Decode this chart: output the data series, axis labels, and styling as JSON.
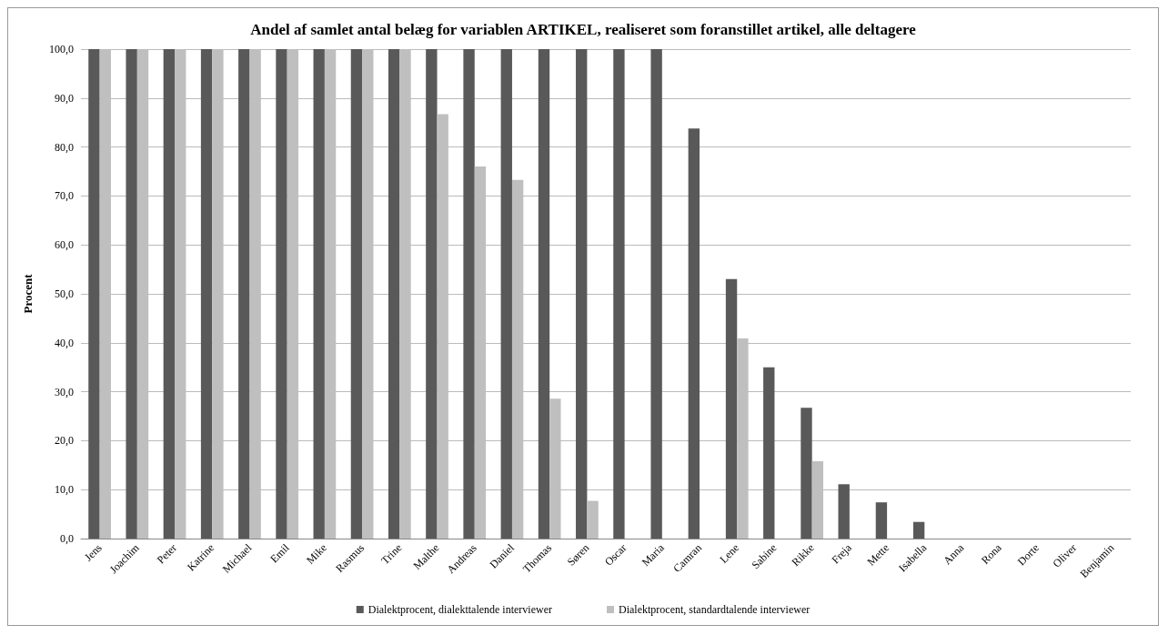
{
  "chart_data": {
    "type": "bar",
    "title": "Andel af samlet antal belæg for variablen ARTIKEL, realiseret som foranstillet artikel, alle deltagere",
    "ylabel": "Procent",
    "categories": [
      "Jens",
      "Joachim",
      "Peter",
      "Katrine",
      "Michael",
      "Emil",
      "Mike",
      "Rasmus",
      "Trine",
      "Malthe",
      "Andreas",
      "Daniel",
      "Thomas",
      "Søren",
      "Oscar",
      "Maria",
      "Camran",
      "Lene",
      "Sabine",
      "Rikke",
      "Freja",
      "Mette",
      "Isabella",
      "Anna",
      "Rona",
      "Dorte",
      "Oliver",
      "Benjamin"
    ],
    "series": [
      {
        "name": "Dialektprocent, dialekttalende interviewer",
        "color": "#595959",
        "values": [
          100,
          100,
          100,
          100,
          100,
          100,
          100,
          100,
          100,
          100,
          100,
          100,
          100,
          100,
          100,
          100,
          83.8,
          53,
          35,
          26.7,
          11.1,
          7.4,
          3.4,
          0,
          0,
          0,
          0,
          0
        ]
      },
      {
        "name": "Dialektprocent, standardtalende interviewer",
        "color": "#bfbfbf",
        "values": [
          100,
          100,
          100,
          100,
          100,
          100,
          100,
          100,
          100,
          86.7,
          76,
          73.3,
          28.6,
          7.7,
          0,
          0,
          0,
          40.9,
          0,
          15.8,
          0,
          0,
          0,
          0,
          0,
          0,
          0,
          0
        ]
      }
    ],
    "ylim": [
      0,
      100
    ],
    "yticks": [
      {
        "value": 0,
        "label": "0,0"
      },
      {
        "value": 10,
        "label": "10,0"
      },
      {
        "value": 20,
        "label": "20,0"
      },
      {
        "value": 30,
        "label": "30,0"
      },
      {
        "value": 40,
        "label": "40,0"
      },
      {
        "value": 50,
        "label": "50,0"
      },
      {
        "value": 60,
        "label": "60,0"
      },
      {
        "value": 70,
        "label": "70,0"
      },
      {
        "value": 80,
        "label": "80,0"
      },
      {
        "value": 90,
        "label": "90,0"
      },
      {
        "value": 100,
        "label": "100,0"
      }
    ],
    "grid": "y",
    "legend": "bottom"
  }
}
